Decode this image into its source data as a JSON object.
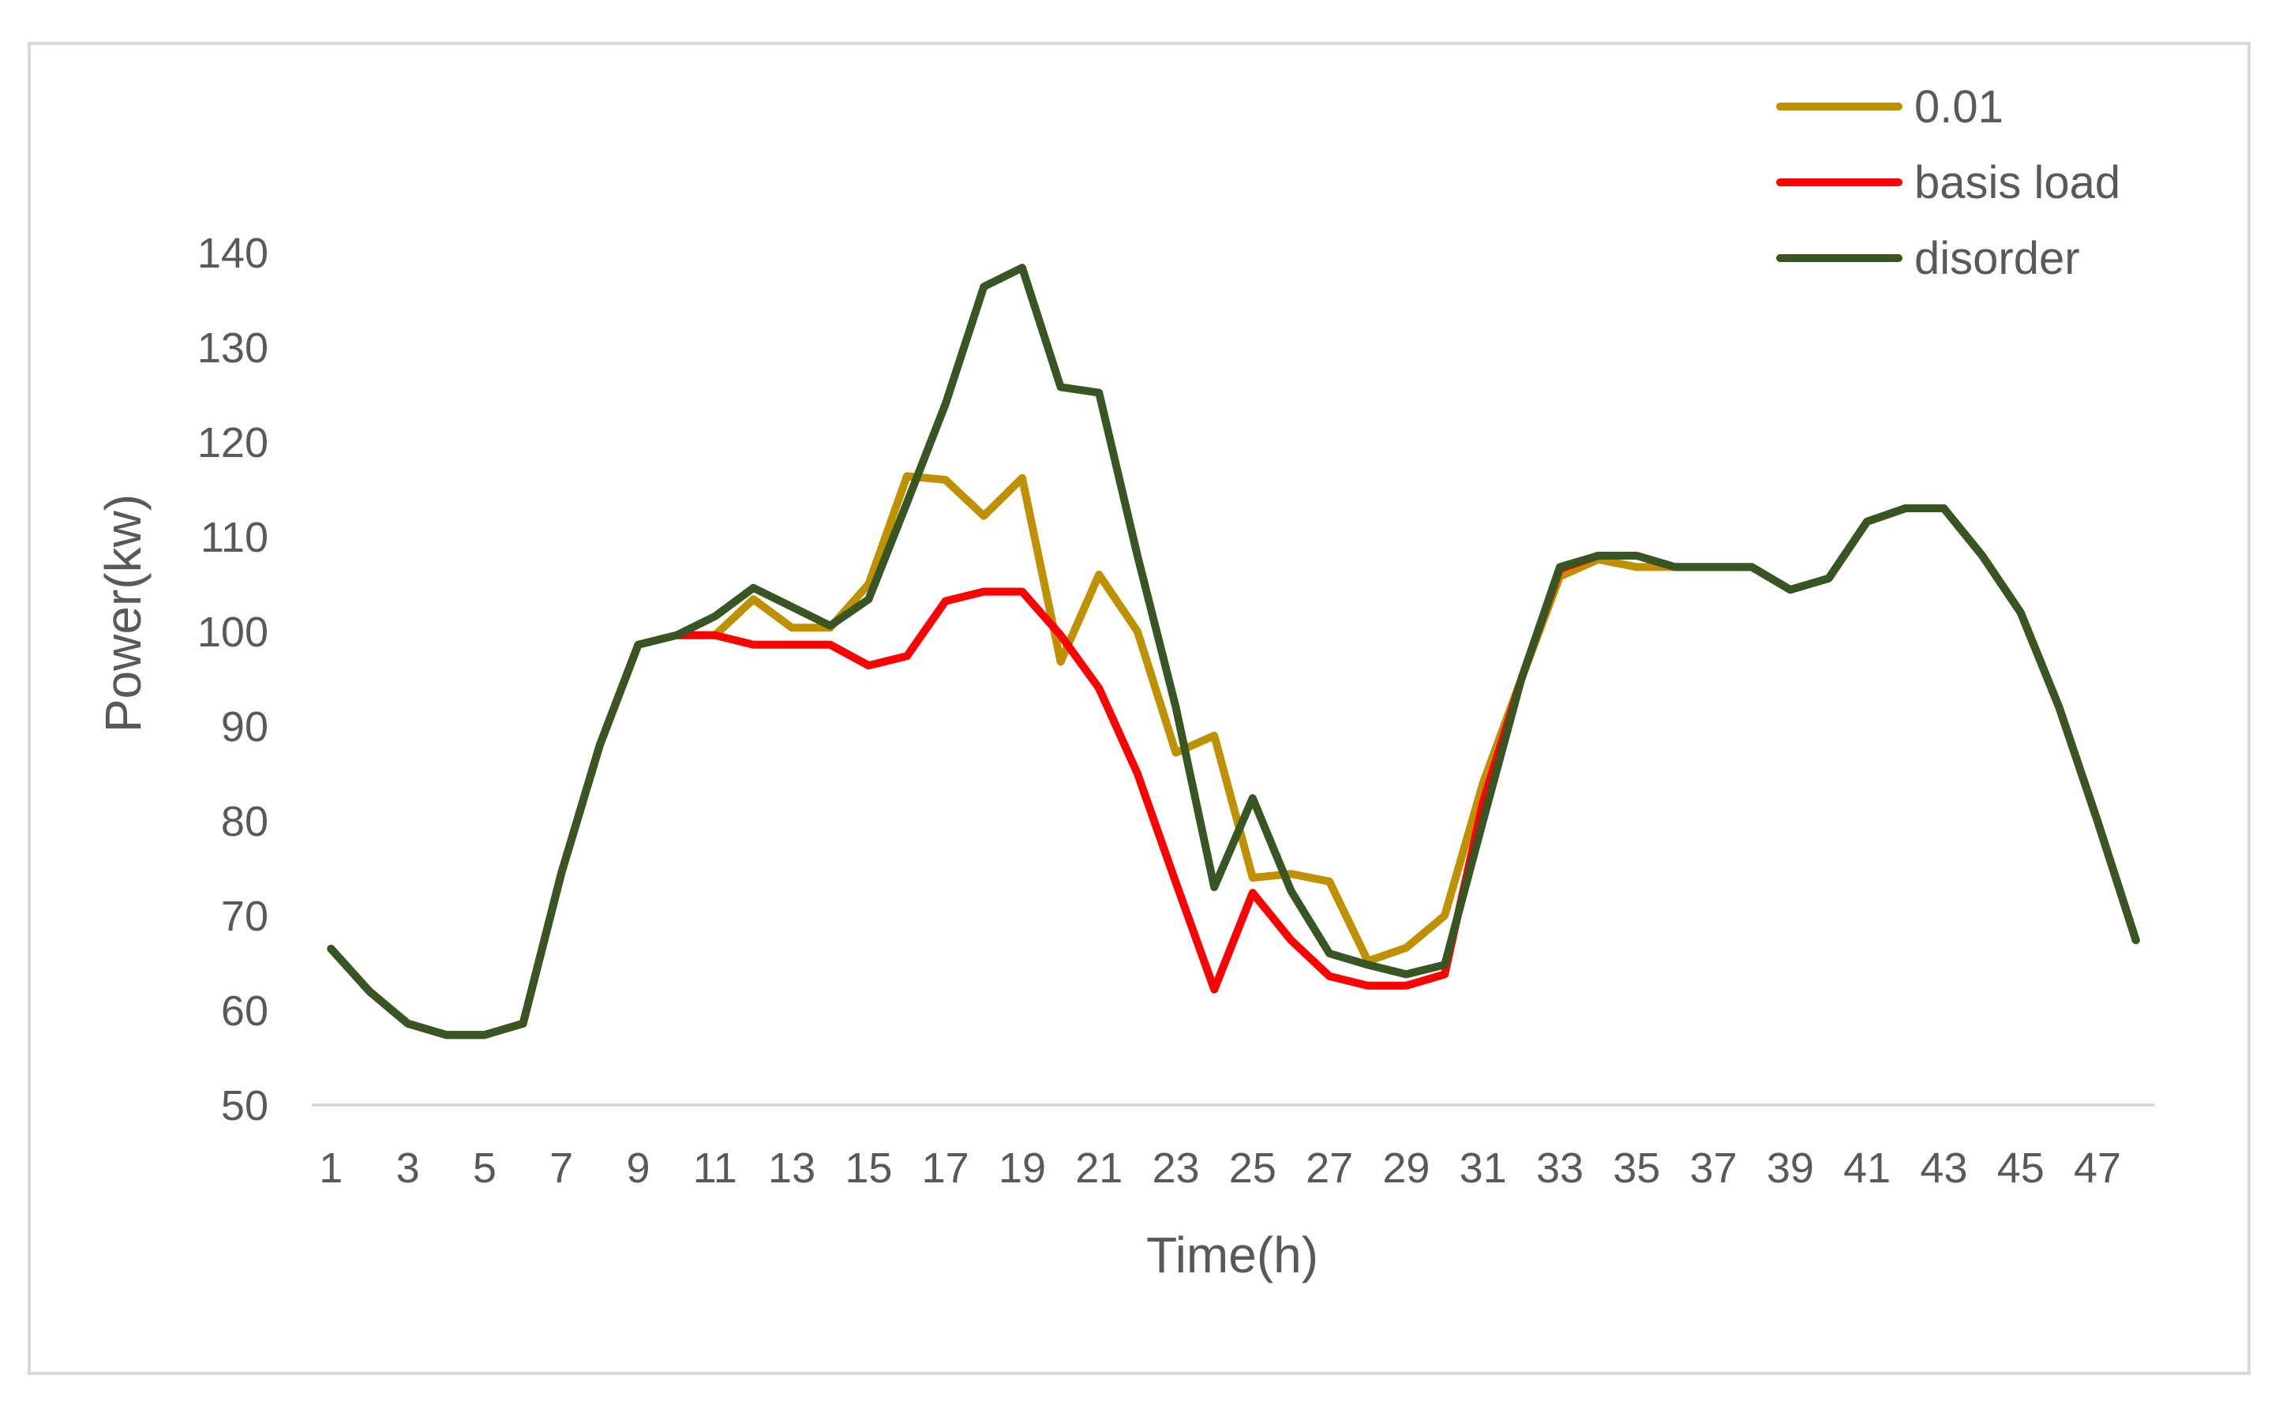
{
  "chart_data": {
    "type": "line",
    "xlabel": "Time(h)",
    "ylabel": "Power(kw)",
    "ylim": [
      50,
      140
    ],
    "yticks": [
      50,
      60,
      70,
      80,
      90,
      100,
      110,
      120,
      130,
      140
    ],
    "x": [
      1,
      2,
      3,
      4,
      5,
      6,
      7,
      8,
      9,
      10,
      11,
      12,
      13,
      14,
      15,
      16,
      17,
      18,
      19,
      20,
      21,
      22,
      23,
      24,
      25,
      26,
      27,
      28,
      29,
      30,
      31,
      32,
      33,
      34,
      35,
      36,
      37,
      38,
      39,
      40,
      41,
      42,
      43,
      44,
      45,
      46,
      47,
      48
    ],
    "xtick_labels": [
      "1",
      "3",
      "5",
      "7",
      "9",
      "11",
      "13",
      "15",
      "17",
      "19",
      "21",
      "23",
      "25",
      "27",
      "29",
      "31",
      "33",
      "35",
      "37",
      "39",
      "41",
      "43",
      "45",
      "47"
    ],
    "grid": false,
    "legend_position": "top-right",
    "series": [
      {
        "name": "0.01",
        "color": "#BF9000",
        "values": [
          66.5,
          62,
          58.6,
          57.4,
          57.4,
          58.6,
          74.5,
          88,
          98.6,
          99.6,
          99.6,
          103.4,
          100.4,
          100.4,
          105,
          116.4,
          116,
          112.2,
          116.2,
          96.8,
          106,
          100,
          87.2,
          89,
          74,
          74.4,
          73.6,
          65.2,
          66.6,
          70,
          84,
          95,
          105.8,
          107.6,
          106.8,
          106.8,
          106.8,
          106.8,
          104.4,
          105.6,
          111.6,
          113,
          113,
          108,
          102,
          92,
          80,
          67.4
        ]
      },
      {
        "name": "basis load",
        "color": "#FF0000",
        "values": [
          66.5,
          62,
          58.6,
          57.4,
          57.4,
          58.6,
          74.5,
          88,
          98.6,
          99.6,
          99.6,
          98.6,
          98.6,
          98.6,
          96.4,
          97.4,
          103.2,
          104.2,
          104.2,
          99.6,
          94,
          85,
          73.5,
          62.2,
          72.4,
          67.4,
          63.6,
          62.6,
          62.6,
          63.8,
          82,
          95,
          106.6,
          108,
          108,
          106.8,
          106.8,
          106.8,
          104.4,
          105.6,
          111.6,
          113,
          113,
          108,
          102,
          92,
          80,
          67.4
        ]
      },
      {
        "name": "disorder",
        "color": "#375623",
        "values": [
          66.5,
          62,
          58.6,
          57.4,
          57.4,
          58.6,
          74.5,
          88,
          98.6,
          99.6,
          101.6,
          104.6,
          102.6,
          100.6,
          103.4,
          113.6,
          124,
          136.4,
          138.4,
          125.8,
          125.2,
          108,
          92,
          73,
          82.4,
          72.6,
          66,
          64.8,
          63.8,
          64.8,
          80,
          95,
          106.8,
          108,
          108,
          106.8,
          106.8,
          106.8,
          104.4,
          105.6,
          111.6,
          113,
          113,
          108,
          102,
          92,
          80,
          67.4
        ]
      }
    ]
  }
}
